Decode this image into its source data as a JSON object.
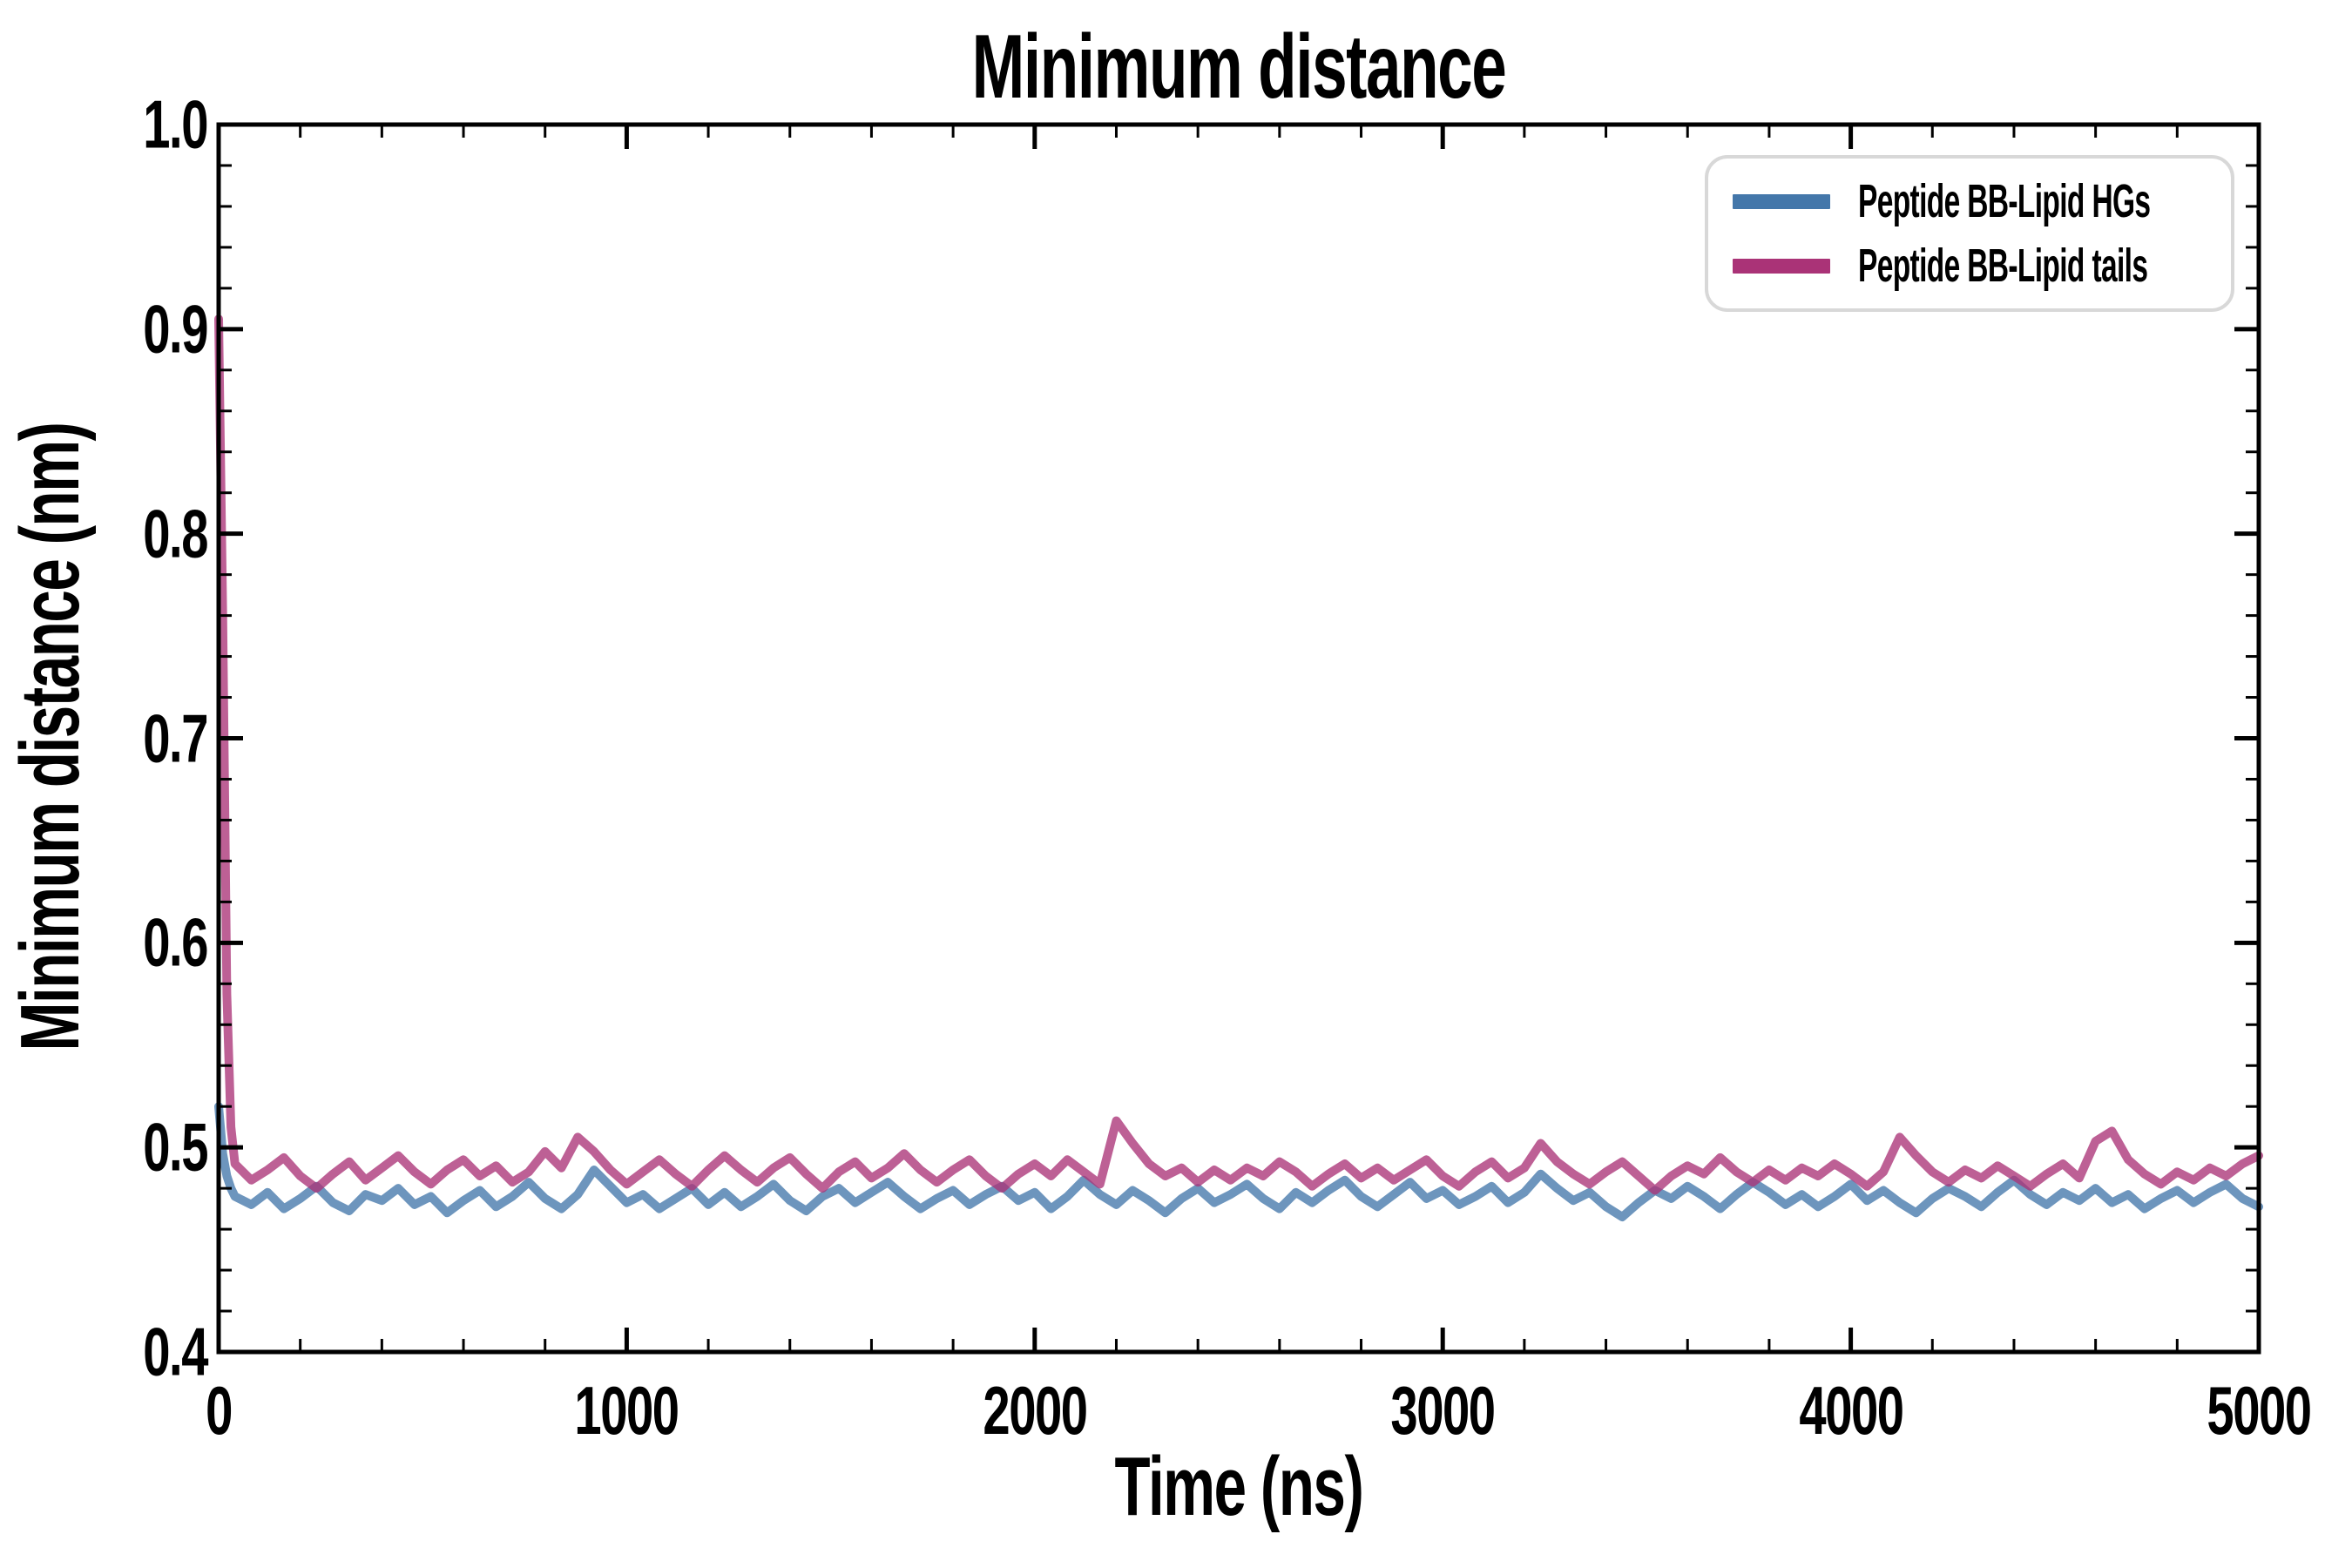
{
  "title": "Minimum distance",
  "legend": {
    "items": [
      {
        "label": "Peptide BB-Lipid HGs",
        "color": "#4477AA"
      },
      {
        "label": "Peptide BB-Lipid tails",
        "color": "#AA3377"
      }
    ]
  },
  "chart_data": {
    "type": "line",
    "title": "Minimum distance",
    "xlabel": "Time (ns)",
    "ylabel": "Minimum distance (nm)",
    "xlim": [
      0,
      5000
    ],
    "ylim": [
      0.4,
      1.0
    ],
    "xticks": [
      0,
      1000,
      2000,
      3000,
      4000,
      5000
    ],
    "yticks": [
      0.4,
      0.5,
      0.6,
      0.7,
      0.8,
      0.9,
      1.0
    ],
    "xtick_minor_step": 200,
    "ytick_minor_step": 0.02,
    "grid": false,
    "legend_position": "upper right",
    "axis_color": "#000000",
    "line_width": 10,
    "line_opacity": 0.78,
    "x": [
      0,
      10,
      20,
      30,
      40,
      80,
      120,
      160,
      200,
      240,
      280,
      320,
      360,
      400,
      440,
      480,
      520,
      560,
      600,
      640,
      680,
      720,
      760,
      800,
      840,
      880,
      920,
      960,
      1000,
      1040,
      1080,
      1120,
      1160,
      1200,
      1240,
      1280,
      1320,
      1360,
      1400,
      1440,
      1480,
      1520,
      1560,
      1600,
      1640,
      1680,
      1720,
      1760,
      1800,
      1840,
      1880,
      1920,
      1960,
      2000,
      2040,
      2080,
      2120,
      2160,
      2200,
      2240,
      2280,
      2320,
      2360,
      2400,
      2440,
      2480,
      2520,
      2560,
      2600,
      2640,
      2680,
      2720,
      2760,
      2800,
      2840,
      2880,
      2920,
      2960,
      3000,
      3040,
      3080,
      3120,
      3160,
      3200,
      3240,
      3280,
      3320,
      3360,
      3400,
      3440,
      3480,
      3520,
      3560,
      3600,
      3640,
      3680,
      3720,
      3760,
      3800,
      3840,
      3880,
      3920,
      3960,
      4000,
      4040,
      4080,
      4120,
      4160,
      4200,
      4240,
      4280,
      4320,
      4360,
      4400,
      4440,
      4480,
      4520,
      4560,
      4600,
      4640,
      4680,
      4720,
      4760,
      4800,
      4840,
      4880,
      4920,
      4960,
      5000
    ],
    "series": [
      {
        "name": "Peptide BB-Lipid HGs",
        "color": "#4477AA",
        "y": [
          0.52,
          0.497,
          0.486,
          0.48,
          0.476,
          0.472,
          0.478,
          0.47,
          0.475,
          0.481,
          0.473,
          0.469,
          0.477,
          0.474,
          0.48,
          0.472,
          0.476,
          0.468,
          0.474,
          0.479,
          0.471,
          0.476,
          0.483,
          0.475,
          0.47,
          0.477,
          0.489,
          0.481,
          0.473,
          0.477,
          0.47,
          0.475,
          0.48,
          0.472,
          0.478,
          0.471,
          0.476,
          0.482,
          0.474,
          0.469,
          0.476,
          0.48,
          0.473,
          0.478,
          0.483,
          0.476,
          0.47,
          0.475,
          0.479,
          0.472,
          0.477,
          0.481,
          0.474,
          0.478,
          0.47,
          0.476,
          0.484,
          0.477,
          0.472,
          0.479,
          0.474,
          0.468,
          0.475,
          0.48,
          0.473,
          0.477,
          0.482,
          0.475,
          0.47,
          0.478,
          0.473,
          0.479,
          0.484,
          0.476,
          0.471,
          0.477,
          0.483,
          0.475,
          0.479,
          0.472,
          0.476,
          0.481,
          0.473,
          0.478,
          0.487,
          0.48,
          0.474,
          0.478,
          0.471,
          0.466,
          0.473,
          0.479,
          0.475,
          0.481,
          0.476,
          0.47,
          0.477,
          0.483,
          0.478,
          0.472,
          0.477,
          0.471,
          0.476,
          0.482,
          0.474,
          0.479,
          0.473,
          0.468,
          0.475,
          0.48,
          0.476,
          0.471,
          0.478,
          0.484,
          0.477,
          0.472,
          0.478,
          0.474,
          0.48,
          0.473,
          0.477,
          0.47,
          0.475,
          0.479,
          0.473,
          0.478,
          0.482,
          0.475,
          0.471
        ]
      },
      {
        "name": "Peptide BB-Lipid tails",
        "color": "#AA3377",
        "y": [
          0.905,
          0.76,
          0.575,
          0.51,
          0.492,
          0.484,
          0.489,
          0.495,
          0.486,
          0.48,
          0.487,
          0.493,
          0.484,
          0.49,
          0.496,
          0.488,
          0.482,
          0.489,
          0.494,
          0.486,
          0.491,
          0.483,
          0.488,
          0.498,
          0.49,
          0.505,
          0.498,
          0.489,
          0.482,
          0.488,
          0.494,
          0.487,
          0.481,
          0.489,
          0.496,
          0.489,
          0.483,
          0.49,
          0.495,
          0.487,
          0.48,
          0.488,
          0.493,
          0.485,
          0.49,
          0.497,
          0.489,
          0.483,
          0.489,
          0.494,
          0.486,
          0.48,
          0.487,
          0.492,
          0.486,
          0.494,
          0.488,
          0.482,
          0.513,
          0.502,
          0.492,
          0.486,
          0.49,
          0.483,
          0.489,
          0.484,
          0.49,
          0.486,
          0.493,
          0.488,
          0.481,
          0.487,
          0.492,
          0.485,
          0.49,
          0.484,
          0.489,
          0.494,
          0.486,
          0.481,
          0.488,
          0.493,
          0.485,
          0.49,
          0.502,
          0.493,
          0.487,
          0.482,
          0.488,
          0.493,
          0.486,
          0.479,
          0.486,
          0.491,
          0.487,
          0.495,
          0.488,
          0.483,
          0.489,
          0.484,
          0.49,
          0.486,
          0.492,
          0.487,
          0.481,
          0.488,
          0.505,
          0.496,
          0.488,
          0.483,
          0.489,
          0.485,
          0.491,
          0.486,
          0.481,
          0.487,
          0.492,
          0.485,
          0.503,
          0.508,
          0.494,
          0.487,
          0.482,
          0.488,
          0.484,
          0.49,
          0.486,
          0.492,
          0.496
        ]
      }
    ]
  }
}
